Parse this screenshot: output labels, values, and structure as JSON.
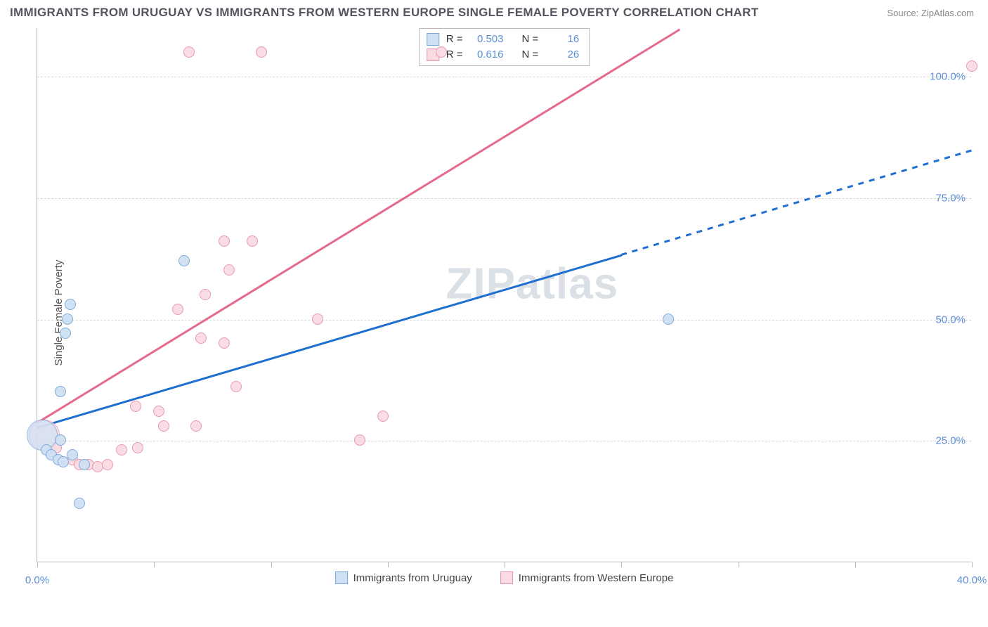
{
  "title": "IMMIGRANTS FROM URUGUAY VS IMMIGRANTS FROM WESTERN EUROPE SINGLE FEMALE POVERTY CORRELATION CHART",
  "source": "Source: ZipAtlas.com",
  "watermark_zip": "ZIP",
  "watermark_atlas": "atlas",
  "ylabel": "Single Female Poverty",
  "chart": {
    "type": "scatter",
    "xlim": [
      0,
      40
    ],
    "ylim": [
      0,
      110
    ],
    "x_ticks": [
      0,
      5,
      10,
      15,
      20,
      25,
      30,
      35,
      40
    ],
    "x_tick_labels": {
      "0": "0.0%",
      "40": "40.0%"
    },
    "y_gridlines": [
      25,
      50,
      75,
      100
    ],
    "y_tick_labels": {
      "25": "25.0%",
      "50": "50.0%",
      "75": "75.0%",
      "100": "100.0%"
    },
    "grid_color": "#d6d6d6",
    "axis_color": "#b9b9b9",
    "background_color": "#ffffff",
    "tick_label_color": "#5a8fd6",
    "marker_radius": 8,
    "marker_stroke": 1.2,
    "big_marker_radius": 22
  },
  "series": {
    "uruguay": {
      "label": "Immigrants from Uruguay",
      "fill": "#cfe0f4",
      "stroke": "#7ca6d8",
      "line_color": "#1f6fd0",
      "R": "0.503",
      "N": "16",
      "trend": {
        "x0": 0,
        "y0": 28,
        "x1": 25,
        "y1": 63.5,
        "dash_to_x": 40,
        "dash_to_y": 85
      },
      "points": [
        {
          "x": 0.2,
          "y": 26,
          "r": 22
        },
        {
          "x": 0.4,
          "y": 23
        },
        {
          "x": 0.6,
          "y": 22
        },
        {
          "x": 0.9,
          "y": 21
        },
        {
          "x": 1.0,
          "y": 25
        },
        {
          "x": 1.1,
          "y": 20.5
        },
        {
          "x": 1.5,
          "y": 22
        },
        {
          "x": 2.0,
          "y": 20
        },
        {
          "x": 1.0,
          "y": 35
        },
        {
          "x": 1.2,
          "y": 47
        },
        {
          "x": 1.3,
          "y": 50
        },
        {
          "x": 1.4,
          "y": 53
        },
        {
          "x": 6.3,
          "y": 62
        },
        {
          "x": 1.8,
          "y": 12
        },
        {
          "x": 27.0,
          "y": 50
        }
      ]
    },
    "western_europe": {
      "label": "Immigrants from Western Europe",
      "fill": "#fadbe3",
      "stroke": "#e695ab",
      "line_color": "#e46a8c",
      "R": "0.616",
      "N": "26",
      "trend": {
        "x0": 0,
        "y0": 29,
        "x1": 27.5,
        "y1": 110
      },
      "points": [
        {
          "x": 0.3,
          "y": 26,
          "r": 22
        },
        {
          "x": 0.8,
          "y": 23.5
        },
        {
          "x": 1.5,
          "y": 21
        },
        {
          "x": 1.8,
          "y": 20
        },
        {
          "x": 2.2,
          "y": 20
        },
        {
          "x": 2.6,
          "y": 19.5
        },
        {
          "x": 3.0,
          "y": 20
        },
        {
          "x": 3.6,
          "y": 23
        },
        {
          "x": 4.3,
          "y": 23.5
        },
        {
          "x": 4.2,
          "y": 32
        },
        {
          "x": 5.2,
          "y": 31
        },
        {
          "x": 5.4,
          "y": 28
        },
        {
          "x": 6.8,
          "y": 28
        },
        {
          "x": 6.0,
          "y": 52
        },
        {
          "x": 7.0,
          "y": 46
        },
        {
          "x": 7.2,
          "y": 55
        },
        {
          "x": 8.0,
          "y": 45
        },
        {
          "x": 8.2,
          "y": 60
        },
        {
          "x": 8.0,
          "y": 66
        },
        {
          "x": 8.5,
          "y": 36
        },
        {
          "x": 9.2,
          "y": 66
        },
        {
          "x": 12.0,
          "y": 50
        },
        {
          "x": 13.8,
          "y": 25
        },
        {
          "x": 14.8,
          "y": 30
        },
        {
          "x": 6.5,
          "y": 105
        },
        {
          "x": 9.6,
          "y": 105
        },
        {
          "x": 17.3,
          "y": 105
        },
        {
          "x": 40.0,
          "y": 102
        }
      ]
    }
  },
  "legend_labels": {
    "R": "R =",
    "N": "N ="
  }
}
